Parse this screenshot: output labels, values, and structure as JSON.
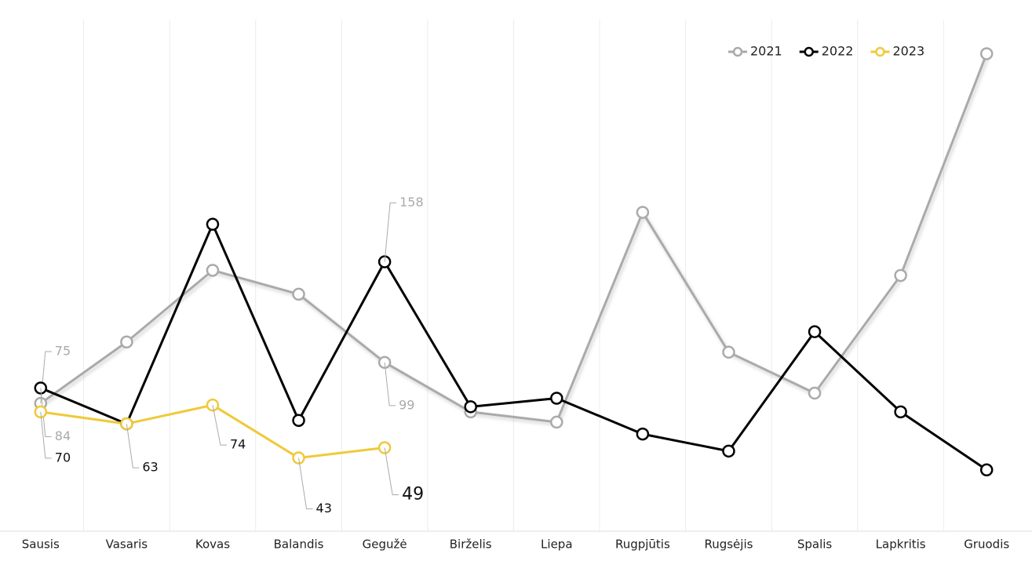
{
  "chart_data": {
    "type": "line",
    "categories": [
      "Sausis",
      "Vasaris",
      "Kovas",
      "Balandis",
      "Gegužė",
      "Birželis",
      "Liepa",
      "Rugpjūtis",
      "Rugsėjis",
      "Spalis",
      "Lapkritis",
      "Gruodis"
    ],
    "series": [
      {
        "name": "2021",
        "color": "#aaaaaa",
        "values": [
          75,
          111,
          153,
          139,
          99,
          70,
          64,
          187,
          105,
          81,
          150,
          280
        ]
      },
      {
        "name": "2022",
        "color": "#000000",
        "values": [
          84,
          63,
          180,
          65,
          158,
          73,
          78,
          57,
          47,
          117,
          70,
          36
        ]
      },
      {
        "name": "2023",
        "color": "#f0c93a",
        "values": [
          70,
          63,
          74,
          43,
          49,
          null,
          null,
          null,
          null,
          null,
          null,
          null
        ]
      }
    ],
    "ylim": [
      0,
      300
    ],
    "legend": "top-right"
  }
}
